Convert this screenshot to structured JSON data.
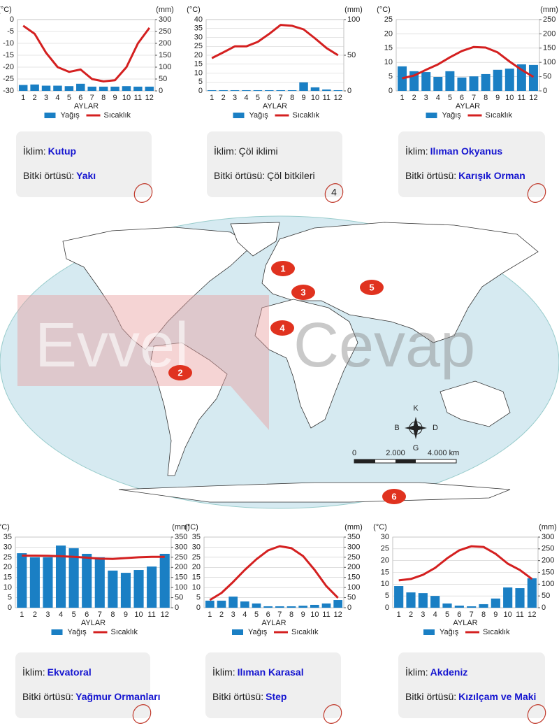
{
  "chart_data": [
    {
      "type": "combo",
      "y_label": "(°C)",
      "y2_label": "(mm)",
      "x_label": "AYLAR",
      "categories": [
        1,
        2,
        3,
        4,
        5,
        6,
        7,
        8,
        9,
        10,
        11,
        12
      ],
      "ylim": [
        -30,
        0
      ],
      "yticks": [
        0,
        -5,
        -10,
        -15,
        -20,
        -25,
        -30
      ],
      "y2lim": [
        0,
        300
      ],
      "y2ticks": [
        300,
        250,
        200,
        150,
        100,
        50,
        0
      ],
      "grid": true,
      "series": [
        {
          "name": "Yağış",
          "type": "bar",
          "axis": "y2",
          "color": "#1a7fc4",
          "values": [
            25,
            27,
            22,
            22,
            20,
            30,
            18,
            18,
            18,
            20,
            18,
            18
          ]
        },
        {
          "name": "Sıcaklık",
          "type": "line",
          "color": "#d42020",
          "values": [
            -2.6,
            -6,
            -14,
            -20,
            -22,
            -21,
            -25,
            -26,
            -25.5,
            -20,
            -10,
            -3.5
          ]
        }
      ]
    },
    {
      "type": "combo",
      "y_label": "(°C)",
      "y2_label": "(mm)",
      "x_label": "AYLAR",
      "categories": [
        1,
        2,
        3,
        4,
        5,
        6,
        7,
        8,
        9,
        10,
        11,
        12
      ],
      "ylim": [
        0,
        40
      ],
      "yticks": [
        40,
        35,
        30,
        25,
        20,
        15,
        10,
        5,
        0
      ],
      "y2lim": [
        0,
        100
      ],
      "y2ticks": [
        100,
        50,
        0
      ],
      "grid": true,
      "series": [
        {
          "name": "Yağış",
          "type": "bar",
          "axis": "y2",
          "color": "#1a7fc4",
          "values": [
            1,
            1,
            1,
            1,
            1,
            1,
            1,
            1,
            12,
            5,
            2,
            1
          ]
        },
        {
          "name": "Sıcaklık",
          "type": "line",
          "color": "#d42020",
          "values": [
            18.4,
            21.6,
            25,
            25,
            27.5,
            32,
            37,
            36.5,
            34.5,
            29.4,
            24,
            20
          ]
        }
      ]
    },
    {
      "type": "combo",
      "y_label": "(°C)",
      "y2_label": "(mm)",
      "x_label": "AYLAR",
      "categories": [
        1,
        2,
        3,
        4,
        5,
        6,
        7,
        8,
        9,
        10,
        11,
        12
      ],
      "ylim": [
        0,
        25
      ],
      "yticks": [
        25,
        20,
        15,
        10,
        5,
        0
      ],
      "y2lim": [
        0,
        250
      ],
      "y2ticks": [
        250,
        200,
        150,
        100,
        50,
        0
      ],
      "grid": true,
      "series": [
        {
          "name": "Yağış",
          "type": "bar",
          "axis": "y2",
          "color": "#1a7fc4",
          "values": [
            86,
            69,
            66,
            49,
            69,
            47,
            51,
            59,
            74,
            78,
            93,
            91
          ]
        },
        {
          "name": "Sıcaklık",
          "type": "line",
          "color": "#d42020",
          "values": [
            4.4,
            5.4,
            7.4,
            9.3,
            11.8,
            14,
            15.4,
            15.2,
            13.5,
            10.3,
            7.4,
            4.9
          ]
        }
      ]
    },
    {
      "type": "combo",
      "y_label": "(°C)",
      "y2_label": "(mm)",
      "x_label": "AYLAR",
      "categories": [
        1,
        2,
        3,
        4,
        5,
        6,
        7,
        8,
        9,
        10,
        11,
        12
      ],
      "ylim": [
        0,
        35
      ],
      "yticks": [
        35,
        30,
        25,
        20,
        15,
        10,
        5,
        0
      ],
      "y2lim": [
        0,
        350
      ],
      "y2ticks": [
        350,
        300,
        250,
        200,
        150,
        100,
        50,
        0
      ],
      "grid": true,
      "series": [
        {
          "name": "Yağış",
          "type": "bar",
          "axis": "y2",
          "color": "#1a7fc4",
          "values": [
            270,
            250,
            250,
            308,
            295,
            267,
            250,
            184,
            173,
            187,
            204,
            267
          ]
        },
        {
          "name": "Sıcaklık",
          "type": "line",
          "color": "#d42020",
          "values": [
            25.8,
            25.8,
            25.7,
            25.5,
            25.2,
            24.8,
            24.3,
            24.2,
            24.6,
            25,
            25.2,
            25.2
          ]
        }
      ]
    },
    {
      "type": "combo",
      "y_label": "(°C)",
      "y2_label": "(mm)",
      "x_label": "AYLAR",
      "categories": [
        1,
        2,
        3,
        4,
        5,
        6,
        7,
        8,
        9,
        10,
        11,
        12
      ],
      "ylim": [
        0,
        35
      ],
      "yticks": [
        35,
        30,
        25,
        20,
        15,
        10,
        5,
        0
      ],
      "y2lim": [
        0,
        350
      ],
      "y2ticks": [
        350,
        300,
        250,
        200,
        150,
        100,
        50,
        0
      ],
      "grid": true,
      "series": [
        {
          "name": "Yağış",
          "type": "bar",
          "axis": "y2",
          "color": "#1a7fc4",
          "values": [
            35,
            35,
            55,
            31,
            21,
            7,
            7,
            7,
            10,
            14,
            21,
            38
          ]
        },
        {
          "name": "Sıcaklık",
          "type": "line",
          "color": "#d42020",
          "values": [
            3.8,
            7.3,
            12.8,
            18.7,
            24,
            28.4,
            30.5,
            29.5,
            25.6,
            18.7,
            10.7,
            4.9
          ]
        }
      ]
    },
    {
      "type": "combo",
      "y_label": "(°C)",
      "y2_label": "(mm)",
      "x_label": "AYLAR",
      "categories": [
        1,
        2,
        3,
        4,
        5,
        6,
        7,
        8,
        9,
        10,
        11,
        12
      ],
      "ylim": [
        0,
        30
      ],
      "yticks": [
        30,
        25,
        20,
        15,
        10,
        5,
        0
      ],
      "y2lim": [
        0,
        300
      ],
      "y2ticks": [
        300,
        250,
        200,
        150,
        100,
        50,
        0
      ],
      "grid": true,
      "series": [
        {
          "name": "Yağış",
          "type": "bar",
          "axis": "y2",
          "color": "#1a7fc4",
          "values": [
            92,
            65,
            62,
            50,
            18,
            9,
            6,
            15,
            39,
            86,
            83,
            125
          ]
        },
        {
          "name": "Sıcaklık",
          "type": "line",
          "color": "#d42020",
          "values": [
            11.6,
            12.2,
            14,
            16.9,
            21,
            24.4,
            26.1,
            25.8,
            22.9,
            18.7,
            16,
            12.2
          ]
        }
      ]
    }
  ],
  "cards": [
    {
      "climate_label": "İklim:",
      "climate": "Kutup",
      "vegetation_label": "Bitki örtüsü:",
      "vegetation": "Yakı",
      "value_color": "#1515d0"
    },
    {
      "climate_label": "İklim:",
      "climate": "Çöl iklimi",
      "vegetation_label": "Bitki örtüsü:",
      "vegetation": "Çöl bitkileri",
      "value_color": "#222222",
      "answer": "4"
    },
    {
      "climate_label": "İklim:",
      "climate": "Ilıman Okyanus",
      "vegetation_label": "Bitki örtüsü:",
      "vegetation": "Karışık Orman",
      "value_color": "#1515d0"
    },
    {
      "climate_label": "İklim:",
      "climate": "Ekvatoral",
      "vegetation_label": "Bitki örtüsü:",
      "vegetation": "Yağmur Ormanları",
      "value_color": "#1515d0"
    },
    {
      "climate_label": "İklim:",
      "climate": "Ilıman Karasal",
      "vegetation_label": "Bitki örtüsü:",
      "vegetation": "Step",
      "value_color": "#1515d0"
    },
    {
      "climate_label": "İklim:",
      "climate": "Akdeniz",
      "vegetation_label": "Bitki örtüsü:",
      "vegetation": "Kızılçam ve Maki",
      "value_color": "#1515d0"
    }
  ],
  "map": {
    "markers": [
      "1",
      "2",
      "3",
      "4",
      "5",
      "6"
    ],
    "compass": {
      "north": "K",
      "west": "B",
      "east": "D",
      "south": "G"
    },
    "scale": [
      "0",
      "2.000",
      "4.000 km"
    ]
  },
  "watermark": [
    "Evvel",
    "Cevap"
  ]
}
